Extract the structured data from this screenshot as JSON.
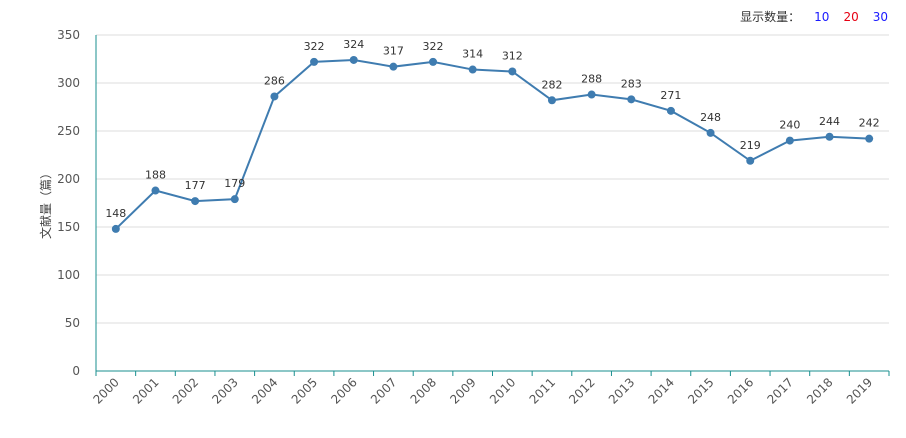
{
  "controls": {
    "label": "显示数量：",
    "options": [
      "10",
      "20",
      "30"
    ]
  },
  "colors": {
    "line": "#3f7cb0",
    "axis": "#1a8f8f",
    "grid": "#dddddd"
  },
  "chart_data": {
    "type": "line",
    "title": "",
    "xlabel": "",
    "ylabel": "文献量（篇）",
    "categories": [
      "2000",
      "2001",
      "2002",
      "2003",
      "2004",
      "2005",
      "2006",
      "2007",
      "2008",
      "2009",
      "2010",
      "2011",
      "2012",
      "2013",
      "2014",
      "2015",
      "2016",
      "2017",
      "2018",
      "2019"
    ],
    "series": [
      {
        "name": "文献量",
        "values": [
          148,
          188,
          177,
          179,
          286,
          322,
          324,
          317,
          322,
          314,
          312,
          282,
          288,
          283,
          271,
          248,
          219,
          240,
          244,
          242
        ]
      }
    ],
    "ylim": [
      0,
      350
    ],
    "yticks": [
      0,
      50,
      100,
      150,
      200,
      250,
      300,
      350
    ],
    "grid": true,
    "legend": "none"
  }
}
